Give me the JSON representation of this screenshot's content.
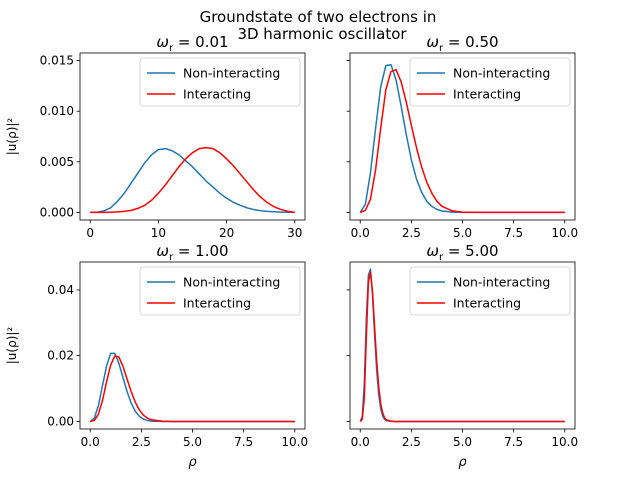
{
  "figure": {
    "suptitle_line1": "Groundstate of two electrons in",
    "suptitle_line2": "3D harmonic oscillator"
  },
  "chart_data": [
    {
      "type": "line",
      "title": "ω_r = 0.01",
      "title_prefix": "ω",
      "title_sub": "r",
      "title_suffix": " = 0.01",
      "xlabel": "",
      "ylabel": "|u(ρ)|²",
      "xlim": [
        -1.5,
        31.5
      ],
      "ylim": [
        -0.00075,
        0.01575
      ],
      "xticks": [
        0,
        10,
        20,
        30
      ],
      "xtick_labels": [
        "0",
        "10",
        "20",
        "30"
      ],
      "yticks": [
        0.0,
        0.005,
        0.01,
        0.015
      ],
      "ytick_labels": [
        "0.000",
        "0.005",
        "0.010",
        "0.015"
      ],
      "show_ytick_labels": true,
      "legend_position": "top-right",
      "series": [
        {
          "name": "Non-interacting",
          "color": "#1f77b4",
          "x": [
            0,
            1,
            2,
            3,
            4,
            5,
            6,
            7,
            8,
            9,
            10,
            11,
            12,
            13,
            14,
            15,
            16,
            17,
            18,
            19,
            20,
            21,
            22,
            23,
            24,
            25,
            26,
            27,
            28,
            29,
            30
          ],
          "y": [
            0.0,
            2e-05,
            0.00015,
            0.00045,
            0.0011,
            0.0019,
            0.0029,
            0.0039,
            0.0049,
            0.0057,
            0.0062,
            0.0063,
            0.0061,
            0.0057,
            0.0051,
            0.0045,
            0.0038,
            0.0031,
            0.0025,
            0.0019,
            0.0014,
            0.001,
            0.0007,
            0.00045,
            0.00028,
            0.00017,
            0.0001,
            6e-05,
            3e-05,
            1e-05,
            0.0
          ]
        },
        {
          "name": "Interacting",
          "color": "#ff0000",
          "x": [
            0,
            1,
            2,
            3,
            4,
            5,
            6,
            7,
            8,
            9,
            10,
            11,
            12,
            13,
            14,
            15,
            16,
            17,
            18,
            19,
            20,
            21,
            22,
            23,
            24,
            25,
            26,
            27,
            28,
            29,
            30
          ],
          "y": [
            0.0,
            0.0,
            0.0,
            2e-05,
            5e-05,
            0.0001,
            0.0002,
            0.0004,
            0.0007,
            0.0012,
            0.0019,
            0.0027,
            0.0036,
            0.0045,
            0.0053,
            0.0059,
            0.0063,
            0.0064,
            0.0063,
            0.0059,
            0.0053,
            0.0046,
            0.0038,
            0.003,
            0.0022,
            0.0015,
            0.00095,
            0.00055,
            0.00028,
            0.0001,
            0.0
          ]
        }
      ]
    },
    {
      "type": "line",
      "title": "ω_r = 0.50",
      "title_prefix": "ω",
      "title_sub": "r",
      "title_suffix": " = 0.50",
      "xlabel": "",
      "ylabel": "",
      "xlim": [
        -0.5,
        10.5
      ],
      "ylim": [
        -0.00075,
        0.01575
      ],
      "xticks": [
        0,
        2.5,
        5,
        7.5,
        10
      ],
      "xtick_labels": [
        "0.0",
        "2.5",
        "5.0",
        "7.5",
        "10.0"
      ],
      "yticks": [
        0.0,
        0.005,
        0.01,
        0.015
      ],
      "ytick_labels": [
        "",
        "",
        "",
        ""
      ],
      "show_ytick_labels": false,
      "legend_position": "top-right",
      "series": [
        {
          "name": "Non-interacting",
          "color": "#1f77b4",
          "x": [
            0,
            0.25,
            0.5,
            0.75,
            1.0,
            1.25,
            1.5,
            1.75,
            2.0,
            2.25,
            2.5,
            2.75,
            3.0,
            3.25,
            3.5,
            3.75,
            4.0,
            4.5,
            5.0,
            6.0,
            8.0,
            10.0
          ],
          "y": [
            0.0,
            0.0008,
            0.0039,
            0.0083,
            0.0124,
            0.0145,
            0.0146,
            0.0131,
            0.0105,
            0.0077,
            0.0052,
            0.0033,
            0.002,
            0.0011,
            0.0006,
            0.0003,
            0.00014,
            3e-05,
            0.0,
            0.0,
            0.0,
            0.0
          ]
        },
        {
          "name": "Interacting",
          "color": "#ff0000",
          "x": [
            0,
            0.25,
            0.5,
            0.75,
            1.0,
            1.25,
            1.5,
            1.75,
            2.0,
            2.25,
            2.5,
            2.75,
            3.0,
            3.25,
            3.5,
            3.75,
            4.0,
            4.5,
            5.0,
            6.0,
            8.0,
            10.0
          ],
          "y": [
            0.0,
            0.0002,
            0.0013,
            0.0042,
            0.0083,
            0.0121,
            0.0139,
            0.0141,
            0.0129,
            0.0109,
            0.0086,
            0.0064,
            0.0045,
            0.003,
            0.0019,
            0.0011,
            0.0006,
            0.00015,
            3e-05,
            0.0,
            0.0,
            0.0
          ]
        }
      ]
    },
    {
      "type": "line",
      "title": "ω_r = 1.00",
      "title_prefix": "ω",
      "title_sub": "r",
      "title_suffix": " = 1.00",
      "xlabel": "ρ",
      "ylabel": "|u(ρ)|²",
      "xlim": [
        -0.5,
        10.5
      ],
      "ylim": [
        -0.0023,
        0.0485
      ],
      "xticks": [
        0,
        2.5,
        5,
        7.5,
        10
      ],
      "xtick_labels": [
        "0.0",
        "2.5",
        "5.0",
        "7.5",
        "10.0"
      ],
      "yticks": [
        0.0,
        0.02,
        0.04
      ],
      "ytick_labels": [
        "0.00",
        "0.02",
        "0.04"
      ],
      "show_ytick_labels": true,
      "legend_position": "top-right",
      "series": [
        {
          "name": "Non-interacting",
          "color": "#1f77b4",
          "x": [
            0,
            0.2,
            0.4,
            0.6,
            0.8,
            1.0,
            1.2,
            1.4,
            1.6,
            1.8,
            2.0,
            2.2,
            2.4,
            2.6,
            2.8,
            3.0,
            3.5,
            4.0,
            5.0,
            7.5,
            10.0
          ],
          "y": [
            0.0,
            0.001,
            0.0048,
            0.0109,
            0.0169,
            0.0207,
            0.0207,
            0.0177,
            0.0134,
            0.0091,
            0.0056,
            0.0031,
            0.0016,
            0.0007,
            0.0003,
            0.0001,
            0.0,
            0.0,
            0.0,
            0.0,
            0.0
          ]
        },
        {
          "name": "Interacting",
          "color": "#ff0000",
          "x": [
            0,
            0.2,
            0.4,
            0.6,
            0.8,
            1.0,
            1.2,
            1.4,
            1.6,
            1.8,
            2.0,
            2.2,
            2.4,
            2.6,
            2.8,
            3.0,
            3.5,
            4.0,
            5.0,
            7.5,
            10.0
          ],
          "y": [
            0.0,
            0.0003,
            0.0022,
            0.0064,
            0.0121,
            0.0172,
            0.0199,
            0.0196,
            0.0168,
            0.0129,
            0.0091,
            0.0059,
            0.0035,
            0.0019,
            0.001,
            0.0005,
            0.0001,
            0.0,
            0.0,
            0.0,
            0.0
          ]
        }
      ]
    },
    {
      "type": "line",
      "title": "ω_r = 5.00",
      "title_prefix": "ω",
      "title_sub": "r",
      "title_suffix": " = 5.00",
      "xlabel": "ρ",
      "ylabel": "",
      "xlim": [
        -0.5,
        10.5
      ],
      "ylim": [
        -0.0023,
        0.0485
      ],
      "xticks": [
        0,
        2.5,
        5,
        7.5,
        10
      ],
      "xtick_labels": [
        "0.0",
        "2.5",
        "5.0",
        "7.5",
        "10.0"
      ],
      "yticks": [
        0.0,
        0.02,
        0.04
      ],
      "ytick_labels": [
        "",
        "",
        ""
      ],
      "show_ytick_labels": false,
      "legend_position": "top-right",
      "series": [
        {
          "name": "Non-interacting",
          "color": "#1f77b4",
          "x": [
            0,
            0.1,
            0.2,
            0.3,
            0.4,
            0.5,
            0.6,
            0.7,
            0.8,
            0.9,
            1.0,
            1.1,
            1.2,
            1.3,
            1.5,
            1.7,
            2.0,
            3.0,
            5.0,
            10.0
          ],
          "y": [
            0.0,
            0.0015,
            0.0117,
            0.0317,
            0.0445,
            0.0463,
            0.0385,
            0.0267,
            0.016,
            0.0084,
            0.0039,
            0.0016,
            0.0006,
            0.0002,
            0.0,
            0.0,
            0.0,
            0.0,
            0.0,
            0.0
          ]
        },
        {
          "name": "Interacting",
          "color": "#ff0000",
          "x": [
            0,
            0.1,
            0.2,
            0.3,
            0.4,
            0.5,
            0.6,
            0.7,
            0.8,
            0.9,
            1.0,
            1.1,
            1.2,
            1.3,
            1.5,
            1.7,
            2.0,
            3.0,
            5.0,
            10.0
          ],
          "y": [
            0.0,
            0.0006,
            0.0072,
            0.0258,
            0.0423,
            0.0455,
            0.0395,
            0.029,
            0.0188,
            0.0108,
            0.0055,
            0.0025,
            0.001,
            0.0004,
            0.0001,
            0.0,
            0.0,
            0.0,
            0.0,
            0.0
          ]
        }
      ]
    }
  ]
}
